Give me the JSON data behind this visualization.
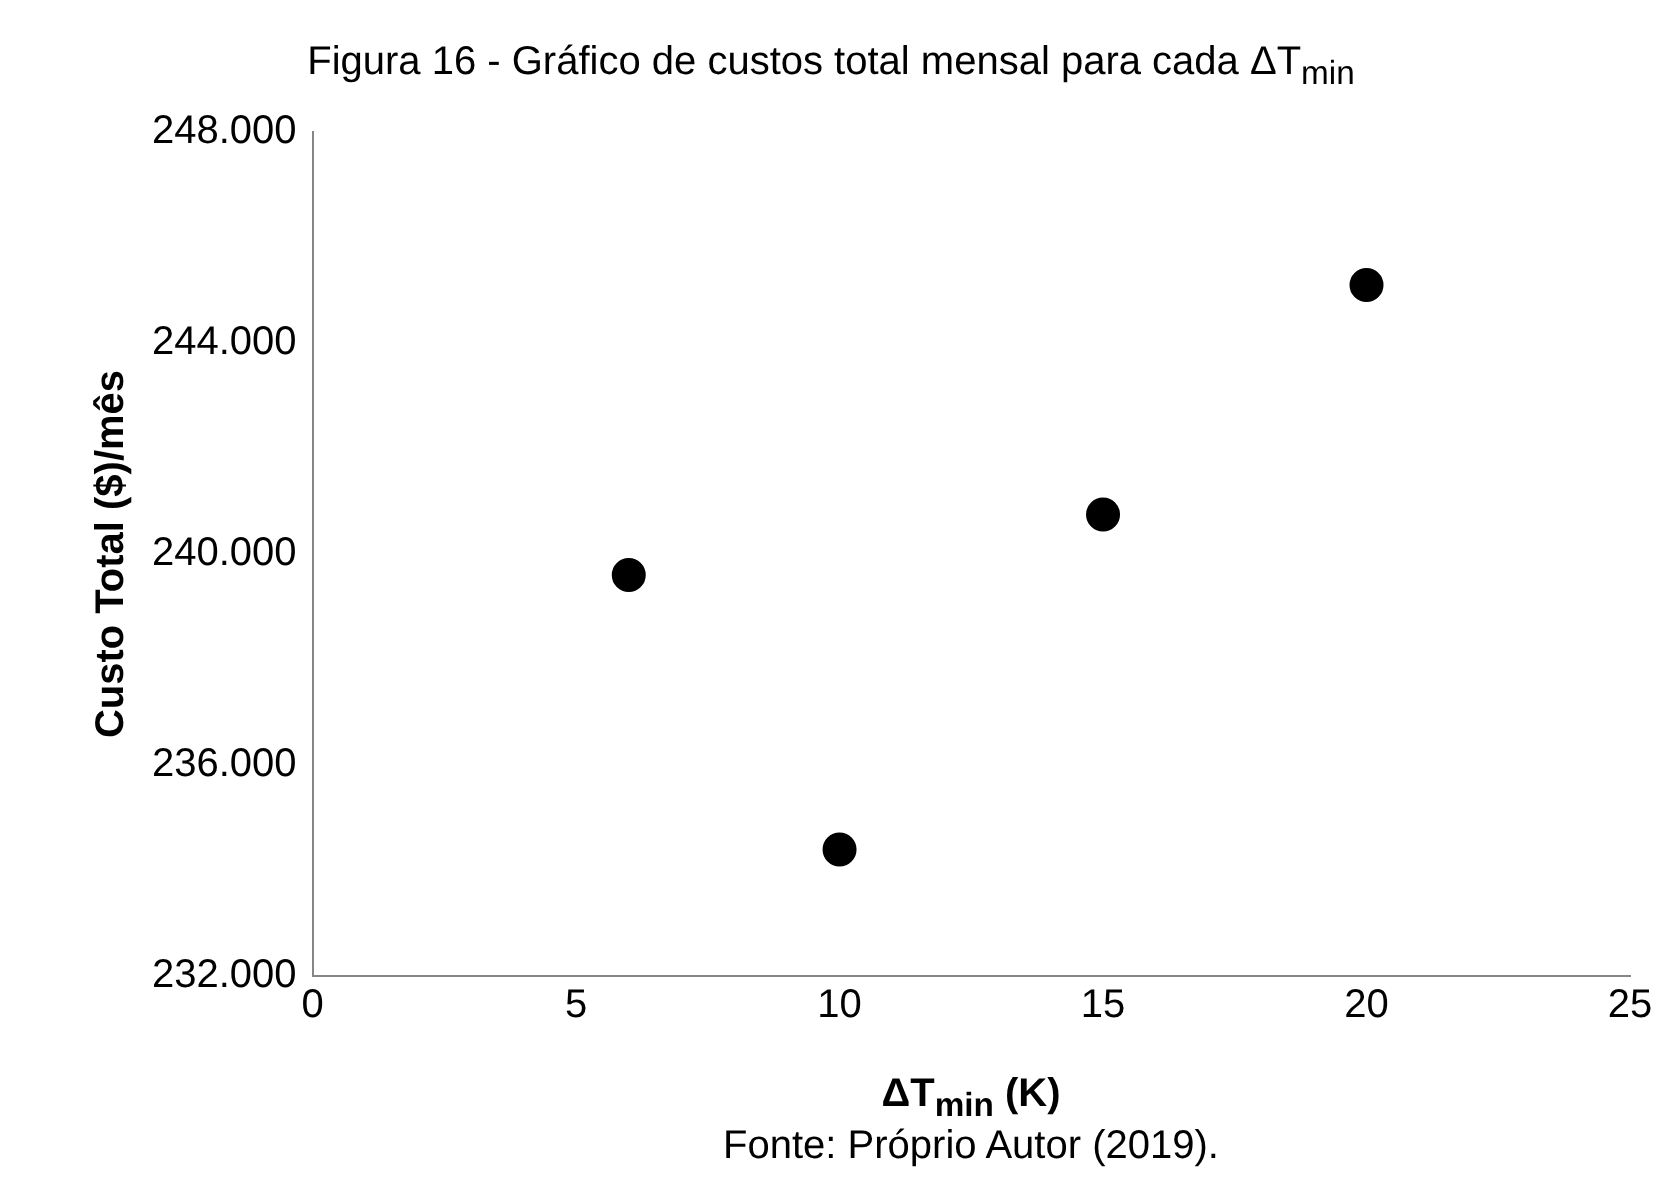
{
  "chart_data": {
    "type": "scatter",
    "title": "Figura 16 - Gráfico de custos total mensal para cada ΔT$_{min}$",
    "xlabel": "ΔT$_{min}$ (K)",
    "ylabel": "Custo Total ($)/mês",
    "annotations": [
      "Fonte: Próprio Autor (2019)."
    ],
    "x": [
      6,
      10,
      15,
      20
    ],
    "series": [
      {
        "color": "#000000",
        "values": [
          239600,
          234400,
          240750,
          245100
        ]
      }
    ],
    "xlim": [
      0,
      25
    ],
    "xticks": [
      0,
      5,
      10,
      15,
      20,
      25
    ],
    "ylim": [
      232000,
      248000
    ],
    "yticks": [
      {
        "value": 232000,
        "label": "232.000"
      },
      {
        "value": 236000,
        "label": "236.000"
      },
      {
        "value": 240000,
        "label": "240.000"
      },
      {
        "value": 244000,
        "label": "244.000"
      },
      {
        "value": 248000,
        "label": "248.000"
      }
    ],
    "grid": false,
    "legend": false,
    "marker": "circle"
  }
}
